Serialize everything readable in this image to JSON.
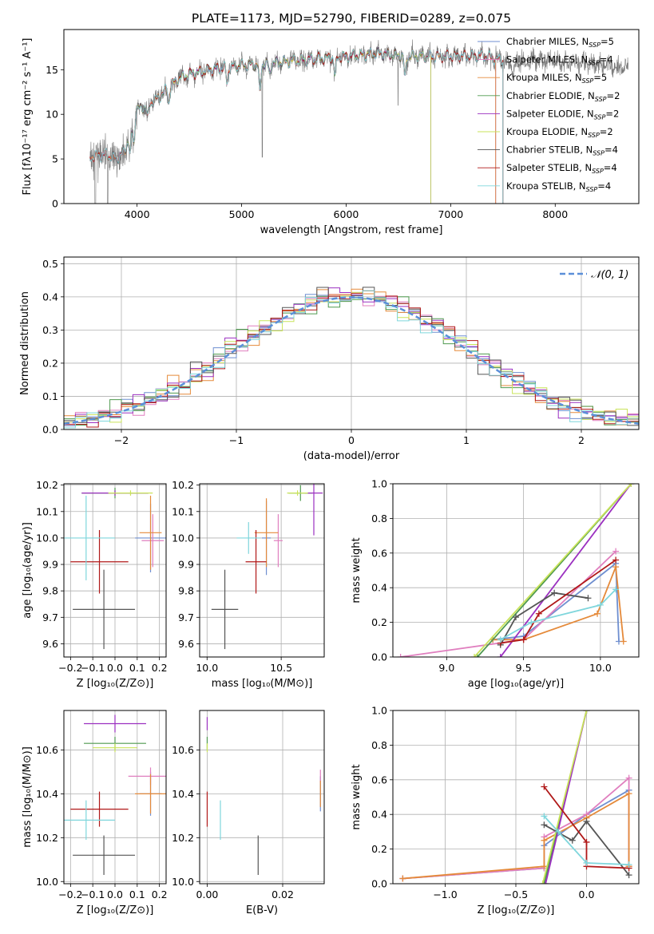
{
  "title": "PLATE=1173, MJD=52790, FIBERID=0289, z=0.075",
  "colors": {
    "grid": "#b0b0b0",
    "gauss": "#5b8fd9"
  },
  "series": [
    {
      "name": "Chabrier MILES",
      "nssp": "5",
      "color": "#6f8fd0"
    },
    {
      "name": "Salpeter MILES",
      "nssp": "4",
      "color": "#e07fbf"
    },
    {
      "name": "Kroupa MILES",
      "nssp": "5",
      "color": "#e58a3a"
    },
    {
      "name": "Chabrier ELODIE",
      "nssp": "2",
      "color": "#4f9a4f"
    },
    {
      "name": "Salpeter ELODIE",
      "nssp": "2",
      "color": "#9b30c0"
    },
    {
      "name": "Kroupa ELODIE",
      "nssp": "2",
      "color": "#c9e35a"
    },
    {
      "name": "Chabrier STELIB",
      "nssp": "4",
      "color": "#555555"
    },
    {
      "name": "Salpeter STELIB",
      "nssp": "4",
      "color": "#b01818"
    },
    {
      "name": "Kroupa STELIB",
      "nssp": "4",
      "color": "#7fd6dc"
    }
  ],
  "chart_data": [
    {
      "id": "spectrum",
      "type": "line",
      "xlabel": "wavelength [Angstrom, rest frame]",
      "ylabel": "Flux [fλ10⁻¹⁷ erg cm⁻² s⁻¹ A⁻¹]",
      "xlim": [
        3300,
        8800
      ],
      "ylim": [
        0,
        19.5
      ],
      "xticks": [
        4000,
        5000,
        6000,
        7000,
        8000
      ],
      "yticks": [
        0,
        5,
        10,
        15
      ],
      "grid": false,
      "legend": "top-right",
      "legend_labels": [
        "Chabrier MILES, N_SSP=5",
        "Salpeter MILES, N_SSP=4",
        "Kroupa MILES, N_SSP=5",
        "Chabrier ELODIE, N_SSP=2",
        "Salpeter ELODIE, N_SSP=2",
        "Kroupa ELODIE, N_SSP=2",
        "Chabrier STELIB, N_SSP=4",
        "Salpeter STELIB, N_SSP=4",
        "Kroupa STELIB, N_SSP=4"
      ],
      "continuum": {
        "x": [
          3550,
          3700,
          3800,
          3880,
          3950,
          4000,
          4100,
          4200,
          4300,
          4400,
          4500,
          4700,
          5000,
          5200,
          5500,
          5800,
          6000,
          6300,
          6600,
          7000,
          7300,
          7500,
          8000,
          8500,
          8800
        ],
        "y": [
          5.2,
          5.5,
          5.0,
          5.8,
          8.5,
          10.5,
          11.0,
          11.8,
          13.0,
          14.0,
          14.5,
          15.0,
          15.5,
          15.6,
          16.0,
          16.3,
          16.5,
          16.8,
          16.5,
          16.5,
          16.6,
          16.0,
          16.0,
          15.5,
          15.0
        ]
      },
      "model_ranges": [
        [
          3550,
          7430
        ],
        [
          3550,
          7430
        ],
        [
          3550,
          7430
        ],
        [
          3900,
          6810
        ],
        [
          3900,
          6810
        ],
        [
          3900,
          6810
        ],
        [
          3550,
          7500
        ],
        [
          3550,
          7500
        ],
        [
          3550,
          7500
        ]
      ]
    },
    {
      "id": "residuals",
      "type": "histogram",
      "xlabel": "(data-model)/error",
      "ylabel": "Normed distribution",
      "xlim": [
        -2.5,
        2.5
      ],
      "ylim": [
        0,
        0.52
      ],
      "xticks": [
        -2,
        -1,
        0,
        1,
        2
      ],
      "yticks": [
        0.0,
        0.1,
        0.2,
        0.3,
        0.4,
        0.5
      ],
      "grid": true,
      "legend": "top-right",
      "gauss_label": "𝒩(0, 1)",
      "bin_width": 0.1
    },
    {
      "id": "age-vs-Z",
      "type": "errorbar",
      "xlabel": "Z [log₁₀(Z/Z⊙)]",
      "ylabel": "age  [log₁₀(age/yr)]",
      "xlim": [
        -0.23,
        0.23
      ],
      "ylim": [
        9.55,
        10.205
      ],
      "xticks": [
        -0.2,
        -0.1,
        0.0,
        0.1,
        0.2
      ],
      "yticks": [
        9.6,
        9.7,
        9.8,
        9.9,
        10.0,
        10.1,
        10.2
      ],
      "grid": true,
      "points": [
        {
          "s": 0,
          "x": 0.16,
          "y": 10.0,
          "xerr": 0.07,
          "yerr": 0.13
        },
        {
          "s": 1,
          "x": 0.17,
          "y": 9.99,
          "xerr": 0.05,
          "yerr": 0.1
        },
        {
          "s": 2,
          "x": 0.16,
          "y": 10.02,
          "xerr": 0.05,
          "yerr": 0.14
        },
        {
          "s": 3,
          "x": 0.0,
          "y": 10.17,
          "xerr": 0.15,
          "yerr": 0.02
        },
        {
          "s": 4,
          "x": 0.0,
          "y": 10.17,
          "xerr": 0.15,
          "yerr": 0.01
        },
        {
          "s": 5,
          "x": 0.07,
          "y": 10.17,
          "xerr": 0.1,
          "yerr": 0.01
        },
        {
          "s": 6,
          "x": -0.05,
          "y": 9.73,
          "xerr": 0.14,
          "yerr": 0.15
        },
        {
          "s": 7,
          "x": -0.07,
          "y": 9.91,
          "xerr": 0.13,
          "yerr": 0.12
        },
        {
          "s": 8,
          "x": -0.13,
          "y": 10.0,
          "xerr": 0.13,
          "yerr": 0.16
        }
      ]
    },
    {
      "id": "age-vs-mass",
      "type": "errorbar",
      "xlabel": "mass [log₁₀(M/M⊙)]",
      "ylabel": "",
      "xlim": [
        9.95,
        10.79
      ],
      "ylim": [
        9.55,
        10.205
      ],
      "xticks": [
        10.0,
        10.5
      ],
      "yticks": [
        9.6,
        9.7,
        9.8,
        9.9,
        10.0,
        10.1,
        10.2
      ],
      "grid": true,
      "points": [
        {
          "s": 0,
          "x": 10.4,
          "y": 10.0,
          "xerr": 0.03,
          "yerr": 0.14
        },
        {
          "s": 1,
          "x": 10.48,
          "y": 9.99,
          "xerr": 0.03,
          "yerr": 0.1
        },
        {
          "s": 2,
          "x": 10.4,
          "y": 10.02,
          "xerr": 0.08,
          "yerr": 0.13
        },
        {
          "s": 3,
          "x": 10.63,
          "y": 10.17,
          "xerr": 0.08,
          "yerr": 0.03
        },
        {
          "s": 4,
          "x": 10.72,
          "y": 10.17,
          "xerr": 0.06,
          "yerr": 0.16
        },
        {
          "s": 5,
          "x": 10.61,
          "y": 10.17,
          "xerr": 0.07,
          "yerr": 0.01
        },
        {
          "s": 6,
          "x": 10.12,
          "y": 9.73,
          "xerr": 0.09,
          "yerr": 0.15
        },
        {
          "s": 7,
          "x": 10.33,
          "y": 9.91,
          "xerr": 0.07,
          "yerr": 0.12
        },
        {
          "s": 8,
          "x": 10.28,
          "y": 10.0,
          "xerr": 0.08,
          "yerr": 0.06
        }
      ]
    },
    {
      "id": "weight-vs-age",
      "type": "line",
      "xlabel": "age  [log₁₀(age/yr)]",
      "ylabel": "mass weight",
      "xlim": [
        8.65,
        10.25
      ],
      "ylim": [
        0,
        1.0
      ],
      "xticks": [
        9.0,
        9.5,
        10.0
      ],
      "yticks": [
        0.0,
        0.2,
        0.4,
        0.6,
        0.8,
        1.0
      ],
      "grid": true,
      "lines": [
        {
          "s": 0,
          "x": [
            9.3,
            9.5,
            10.1,
            10.12
          ],
          "y": [
            0.1,
            0.12,
            0.54,
            0.09
          ]
        },
        {
          "s": 1,
          "x": [
            8.7,
            9.5,
            10.1
          ],
          "y": [
            0.0,
            0.1,
            0.61
          ]
        },
        {
          "s": 2,
          "x": [
            9.3,
            9.5,
            9.98,
            10.1,
            10.15
          ],
          "y": [
            0.1,
            0.1,
            0.25,
            0.52,
            0.09
          ]
        },
        {
          "s": 3,
          "x": [
            9.2,
            10.2
          ],
          "y": [
            0.0,
            1.0
          ]
        },
        {
          "s": 4,
          "x": [
            9.35,
            10.2
          ],
          "y": [
            0.0,
            1.0
          ]
        },
        {
          "s": 5,
          "x": [
            9.18,
            10.2
          ],
          "y": [
            0.0,
            1.0
          ]
        },
        {
          "s": 6,
          "x": [
            9.35,
            9.45,
            9.7,
            9.92
          ],
          "y": [
            0.07,
            0.23,
            0.37,
            0.34
          ]
        },
        {
          "s": 7,
          "x": [
            9.35,
            9.5,
            9.6,
            10.1
          ],
          "y": [
            0.08,
            0.1,
            0.25,
            0.56
          ]
        },
        {
          "s": 8,
          "x": [
            9.35,
            9.55,
            10.0,
            10.1
          ],
          "y": [
            0.1,
            0.2,
            0.3,
            0.39
          ]
        }
      ]
    },
    {
      "id": "mass-vs-Z",
      "type": "errorbar",
      "xlabel": "Z [log₁₀(Z/Z⊙)]",
      "ylabel": "mass [log₁₀(M/M⊙)]",
      "xlim": [
        -0.23,
        0.23
      ],
      "ylim": [
        9.99,
        10.78
      ],
      "xticks": [
        -0.2,
        -0.1,
        0.0,
        0.1,
        0.2
      ],
      "yticks": [
        10.0,
        10.2,
        10.4,
        10.6
      ],
      "grid": true,
      "points": [
        {
          "s": 0,
          "x": 0.16,
          "y": 10.4,
          "xerr": 0.05,
          "yerr": 0.1
        },
        {
          "s": 1,
          "x": 0.16,
          "y": 10.48,
          "xerr": 0.1,
          "yerr": 0.04
        },
        {
          "s": 2,
          "x": 0.16,
          "y": 10.4,
          "xerr": 0.07,
          "yerr": 0.09
        },
        {
          "s": 3,
          "x": 0.0,
          "y": 10.63,
          "xerr": 0.14,
          "yerr": 0.03
        },
        {
          "s": 4,
          "x": 0.0,
          "y": 10.72,
          "xerr": 0.14,
          "yerr": 0.04
        },
        {
          "s": 5,
          "x": 0.0,
          "y": 10.61,
          "xerr": 0.1,
          "yerr": 0.02
        },
        {
          "s": 6,
          "x": -0.05,
          "y": 10.12,
          "xerr": 0.14,
          "yerr": 0.09
        },
        {
          "s": 7,
          "x": -0.07,
          "y": 10.33,
          "xerr": 0.13,
          "yerr": 0.08
        },
        {
          "s": 8,
          "x": -0.13,
          "y": 10.28,
          "xerr": 0.13,
          "yerr": 0.09
        }
      ]
    },
    {
      "id": "mass-vs-EBV",
      "type": "errorbar",
      "xlabel": "E(B-V)",
      "ylabel": "",
      "xlim": [
        -0.002,
        0.031
      ],
      "ylim": [
        9.99,
        10.78
      ],
      "xticks": [
        0.0,
        0.02
      ],
      "yticks": [
        10.0,
        10.2,
        10.4,
        10.6
      ],
      "grid": true,
      "points": [
        {
          "s": 0,
          "x": 0.03,
          "y": 10.4,
          "xerr": 0.0,
          "yerr": 0.08
        },
        {
          "s": 1,
          "x": 0.03,
          "y": 10.48,
          "xerr": 0.0,
          "yerr": 0.03
        },
        {
          "s": 2,
          "x": 0.03,
          "y": 10.4,
          "xerr": 0.0,
          "yerr": 0.06
        },
        {
          "s": 3,
          "x": 0.0,
          "y": 10.63,
          "xerr": 0.0,
          "yerr": 0.03
        },
        {
          "s": 4,
          "x": 0.0,
          "y": 10.72,
          "xerr": 0.0,
          "yerr": 0.03
        },
        {
          "s": 5,
          "x": 0.0,
          "y": 10.61,
          "xerr": 0.0,
          "yerr": 0.02
        },
        {
          "s": 6,
          "x": 0.0135,
          "y": 10.12,
          "xerr": 0.0,
          "yerr": 0.09
        },
        {
          "s": 7,
          "x": 0.0,
          "y": 10.33,
          "xerr": 0.0,
          "yerr": 0.08
        },
        {
          "s": 8,
          "x": 0.0035,
          "y": 10.28,
          "xerr": 0.0,
          "yerr": 0.09
        }
      ]
    },
    {
      "id": "weight-vs-Z",
      "type": "line",
      "xlabel": "Z [log₁₀(Z/Z⊙)]",
      "ylabel": "mass weight",
      "xlim": [
        -1.37,
        0.37
      ],
      "ylim": [
        0,
        1.0
      ],
      "xticks": [
        -1.0,
        -0.5,
        0.0
      ],
      "yticks": [
        0.0,
        0.2,
        0.4,
        0.6,
        0.8,
        1.0
      ],
      "grid": true,
      "lines": [
        {
          "s": 0,
          "x": [
            -1.3,
            -0.3,
            -0.3,
            0.0,
            0.3,
            0.3
          ],
          "y": [
            0.03,
            0.09,
            0.22,
            0.4,
            0.54,
            0.1
          ]
        },
        {
          "s": 1,
          "x": [
            -1.3,
            -0.3,
            -0.3,
            0.0,
            0.3,
            0.3
          ],
          "y": [
            0.03,
            0.09,
            0.27,
            0.4,
            0.61,
            0.1
          ]
        },
        {
          "s": 2,
          "x": [
            -1.3,
            -0.3,
            -0.3,
            0.0,
            0.3,
            0.3
          ],
          "y": [
            0.03,
            0.1,
            0.25,
            0.38,
            0.52,
            0.1
          ]
        },
        {
          "s": 3,
          "x": [
            -0.3,
            0.0
          ],
          "y": [
            0.0,
            1.0
          ]
        },
        {
          "s": 4,
          "x": [
            -0.29,
            0.0
          ],
          "y": [
            0.0,
            1.0
          ]
        },
        {
          "s": 5,
          "x": [
            -0.31,
            0.0
          ],
          "y": [
            0.0,
            1.0
          ]
        },
        {
          "s": 6,
          "x": [
            -0.3,
            -0.1,
            0.0,
            0.3
          ],
          "y": [
            0.34,
            0.25,
            0.36,
            0.05
          ]
        },
        {
          "s": 7,
          "x": [
            -0.3,
            0.0,
            0.0,
            0.3
          ],
          "y": [
            0.56,
            0.24,
            0.1,
            0.09
          ]
        },
        {
          "s": 8,
          "x": [
            -0.3,
            -0.2,
            0.0,
            0.3
          ],
          "y": [
            0.39,
            0.3,
            0.12,
            0.11
          ]
        }
      ]
    }
  ]
}
